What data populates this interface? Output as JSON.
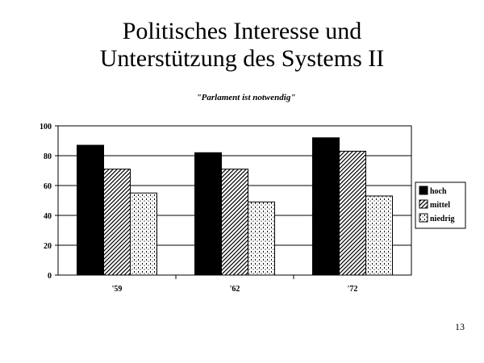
{
  "slide": {
    "title_line1": "Politisches Interesse und",
    "title_line2": "Unterstützung des Systems II",
    "page_number": "13"
  },
  "chart_data": {
    "type": "bar",
    "title": "\"Parlament ist notwendig\"",
    "categories": [
      "'59",
      "'62",
      "'72"
    ],
    "series": [
      {
        "name": "hoch",
        "values": [
          87,
          82,
          92
        ],
        "fill": "solid-black"
      },
      {
        "name": "mittel",
        "values": [
          71,
          71,
          83
        ],
        "fill": "diagonal-hatch"
      },
      {
        "name": "niedrig",
        "values": [
          55,
          49,
          53
        ],
        "fill": "dotted"
      }
    ],
    "ylim": [
      0,
      100
    ],
    "yticks": [
      0,
      20,
      40,
      60,
      80,
      100
    ],
    "grid": true,
    "legend": "right"
  }
}
